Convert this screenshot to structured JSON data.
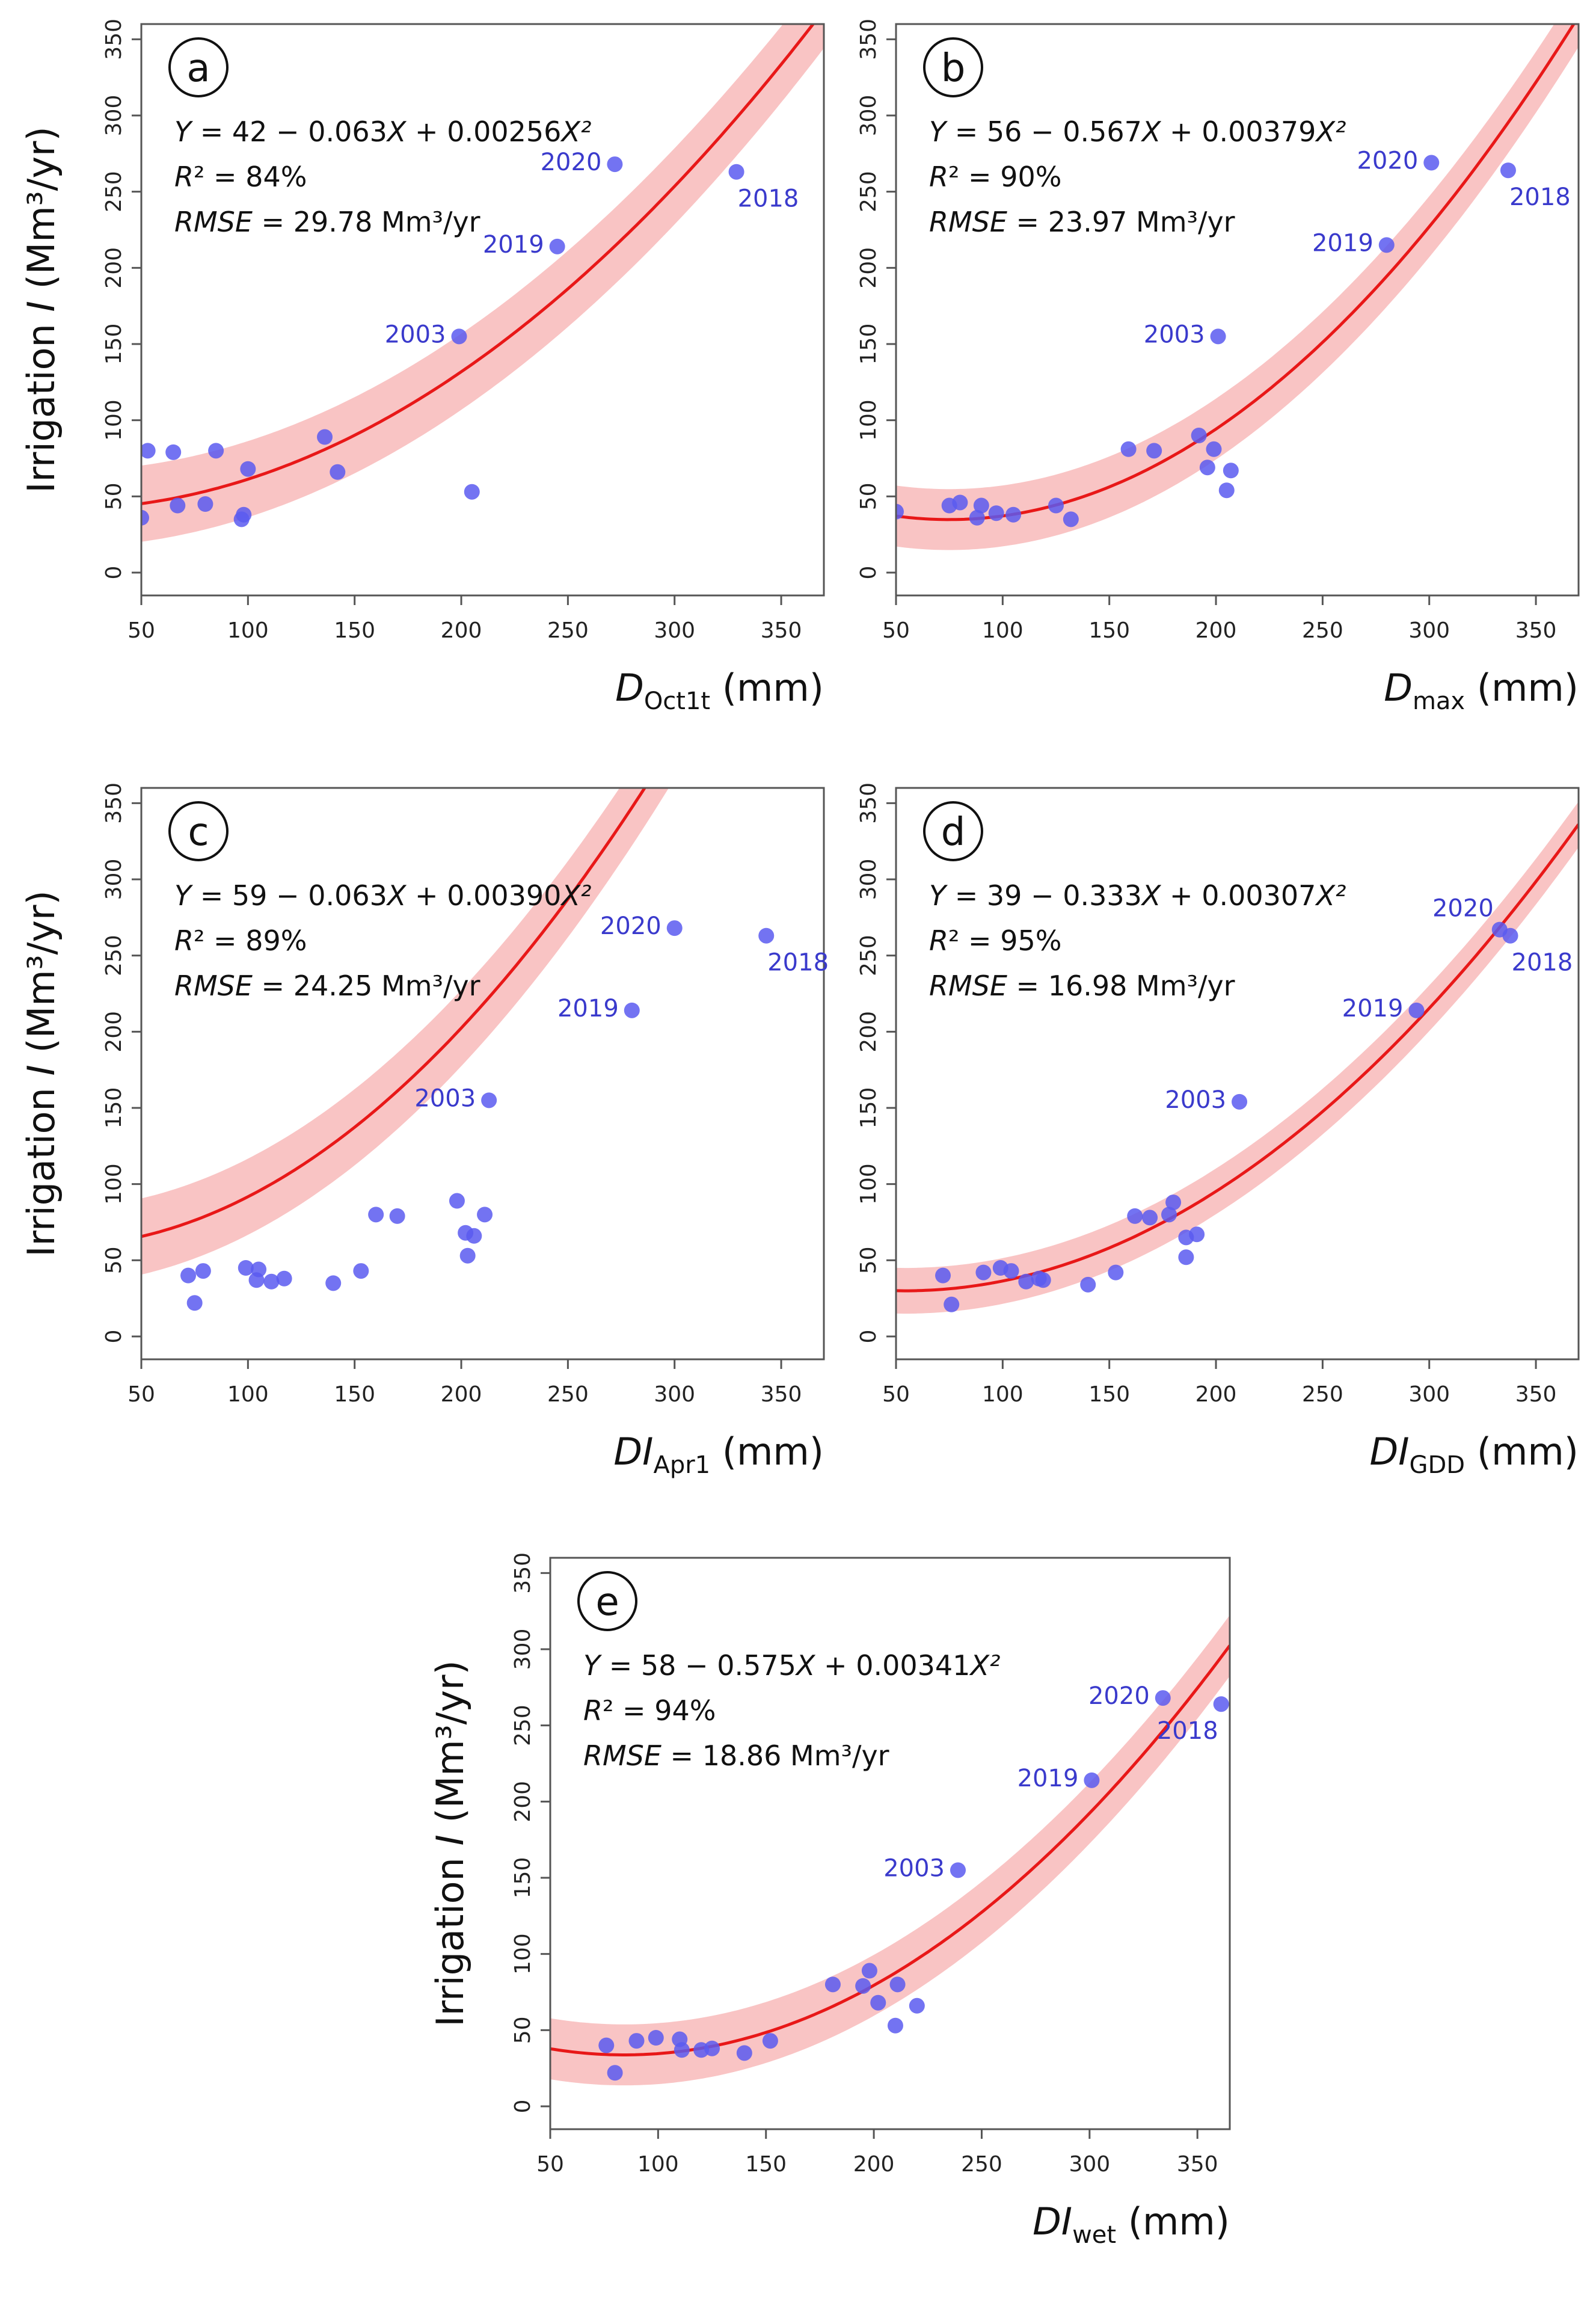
{
  "chart_data": [
    {
      "panel": "a",
      "type": "scatter",
      "equation": {
        "Y": "Y",
        "rhs": " = 42 − 0.063",
        "X1": "X",
        "mid": " + 0.00256",
        "X2": "X²"
      },
      "r2": {
        "sym": "R",
        "text": "² = 84%"
      },
      "rmse": {
        "sym": "RMSE",
        "text": " = 29.78 Mm³/yr"
      },
      "ylabel": {
        "pre": "Irrigation ",
        "sym": "I",
        "post": " (Mm³/yr)"
      },
      "xlabel": {
        "sym": "D",
        "sub": "Oct1t",
        "post": " (mm)"
      },
      "xlim": [
        50,
        370
      ],
      "ylim": [
        -15,
        360
      ],
      "xticks": [
        "50",
        "100",
        "150",
        "200",
        "250",
        "300",
        "350"
      ],
      "yticks": [
        "0",
        "50",
        "100",
        "150",
        "200",
        "250",
        "300",
        "350"
      ],
      "coef": [
        42,
        -0.063,
        0.00256
      ],
      "band": 25,
      "points": [
        [
          50,
          36
        ],
        [
          53,
          80
        ],
        [
          65,
          79
        ],
        [
          67,
          44
        ],
        [
          80,
          45
        ],
        [
          85,
          80
        ],
        [
          97,
          35
        ],
        [
          98,
          38
        ],
        [
          100,
          68
        ],
        [
          136,
          89
        ],
        [
          142,
          66
        ],
        [
          199,
          155
        ],
        [
          205,
          53
        ],
        [
          245,
          214
        ],
        [
          272,
          268
        ],
        [
          329,
          263
        ]
      ],
      "labels": [
        {
          "text": "2003",
          "x": 199,
          "y": 155,
          "side": "left"
        },
        {
          "text": "2019",
          "x": 245,
          "y": 214,
          "side": "left"
        },
        {
          "text": "2020",
          "x": 272,
          "y": 268,
          "side": "left"
        },
        {
          "text": "2018",
          "x": 329,
          "y": 263,
          "side": "below-right"
        }
      ]
    },
    {
      "panel": "b",
      "type": "scatter",
      "equation": {
        "Y": "Y",
        "rhs": " = 56 − 0.567",
        "X1": "X",
        "mid": " + 0.00379",
        "X2": "X²"
      },
      "r2": {
        "sym": "R",
        "text": "² = 90%"
      },
      "rmse": {
        "sym": "RMSE",
        "text": " = 23.97 Mm³/yr"
      },
      "ylabel": null,
      "xlabel": {
        "sym": "D",
        "sub": "max",
        "post": " (mm)"
      },
      "xlim": [
        50,
        370
      ],
      "ylim": [
        -15,
        360
      ],
      "xticks": [
        "50",
        "100",
        "150",
        "200",
        "250",
        "300",
        "350"
      ],
      "yticks": [
        "0",
        "50",
        "100",
        "150",
        "200",
        "250",
        "300",
        "350"
      ],
      "coef": [
        56,
        -0.567,
        0.00379
      ],
      "band": 20,
      "points": [
        [
          50,
          40
        ],
        [
          75,
          44
        ],
        [
          80,
          46
        ],
        [
          88,
          36
        ],
        [
          90,
          44
        ],
        [
          97,
          39
        ],
        [
          105,
          38
        ],
        [
          125,
          44
        ],
        [
          132,
          35
        ],
        [
          159,
          81
        ],
        [
          171,
          80
        ],
        [
          192,
          90
        ],
        [
          196,
          69
        ],
        [
          199,
          81
        ],
        [
          201,
          155
        ],
        [
          205,
          54
        ],
        [
          207,
          67
        ],
        [
          280,
          215
        ],
        [
          301,
          269
        ],
        [
          337,
          264
        ]
      ],
      "labels": [
        {
          "text": "2003",
          "x": 201,
          "y": 155,
          "side": "left"
        },
        {
          "text": "2019",
          "x": 280,
          "y": 215,
          "side": "left"
        },
        {
          "text": "2020",
          "x": 301,
          "y": 269,
          "side": "left"
        },
        {
          "text": "2018",
          "x": 337,
          "y": 264,
          "side": "below-right"
        }
      ]
    },
    {
      "panel": "c",
      "type": "scatter",
      "equation": {
        "Y": "Y",
        "rhs": " =  59 − 0.063",
        "X1": "X",
        "mid": " + 0.00390",
        "X2": "X²"
      },
      "r2": {
        "sym": "R",
        "text": "² = 89%"
      },
      "rmse": {
        "sym": "RMSE",
        "text": " = 24.25 Mm³/yr"
      },
      "ylabel": {
        "pre": "Irrigation ",
        "sym": "I",
        "post": " (Mm³/yr)"
      },
      "xlabel": {
        "sym": "DI",
        "sub": "Apr1",
        "post": " (mm)"
      },
      "xlim": [
        50,
        370
      ],
      "ylim": [
        -15,
        360
      ],
      "xticks": [
        "50",
        "100",
        "150",
        "200",
        "250",
        "300",
        "350"
      ],
      "yticks": [
        "0",
        "50",
        "100",
        "150",
        "200",
        "250",
        "300",
        "350"
      ],
      "coef": [
        59,
        -0.063,
        0.0039
      ],
      "band": 25,
      "points": [
        [
          72,
          40
        ],
        [
          75,
          22
        ],
        [
          79,
          43
        ],
        [
          99,
          45
        ],
        [
          104,
          37
        ],
        [
          105,
          44
        ],
        [
          111,
          36
        ],
        [
          117,
          38
        ],
        [
          140,
          35
        ],
        [
          153,
          43
        ],
        [
          160,
          80
        ],
        [
          170,
          79
        ],
        [
          198,
          89
        ],
        [
          202,
          68
        ],
        [
          203,
          53
        ],
        [
          206,
          66
        ],
        [
          211,
          80
        ],
        [
          213,
          155
        ],
        [
          280,
          214
        ],
        [
          300,
          268
        ],
        [
          343,
          263
        ]
      ],
      "labels": [
        {
          "text": "2003",
          "x": 213,
          "y": 155,
          "side": "left"
        },
        {
          "text": "2019",
          "x": 280,
          "y": 214,
          "side": "left"
        },
        {
          "text": "2020",
          "x": 300,
          "y": 268,
          "side": "left"
        },
        {
          "text": "2018",
          "x": 343,
          "y": 263,
          "side": "below-right"
        }
      ]
    },
    {
      "panel": "d",
      "type": "scatter",
      "equation": {
        "Y": "Y",
        "rhs": " =  39 − 0.333",
        "X1": "X",
        "mid": " + 0.00307",
        "X2": "X²"
      },
      "r2": {
        "sym": "R",
        "text": "² = 95%"
      },
      "rmse": {
        "sym": "RMSE",
        "text": " = 16.98 Mm³/yr"
      },
      "ylabel": null,
      "xlabel": {
        "sym": "DI",
        "sub": "GDD",
        "post": " (mm)"
      },
      "xlim": [
        50,
        370
      ],
      "ylim": [
        -15,
        360
      ],
      "xticks": [
        "50",
        "100",
        "150",
        "200",
        "250",
        "300",
        "350"
      ],
      "yticks": [
        "0",
        "50",
        "100",
        "150",
        "200",
        "250",
        "300",
        "350"
      ],
      "coef": [
        39,
        -0.333,
        0.00307
      ],
      "band": 15,
      "points": [
        [
          72,
          40
        ],
        [
          76,
          21
        ],
        [
          91,
          42
        ],
        [
          99,
          45
        ],
        [
          104,
          43
        ],
        [
          111,
          36
        ],
        [
          117,
          38
        ],
        [
          119,
          37
        ],
        [
          140,
          34
        ],
        [
          153,
          42
        ],
        [
          162,
          79
        ],
        [
          169,
          78
        ],
        [
          178,
          80
        ],
        [
          180,
          88
        ],
        [
          186,
          52
        ],
        [
          186,
          65
        ],
        [
          191,
          67
        ],
        [
          211,
          154
        ],
        [
          294,
          214
        ],
        [
          333,
          267
        ],
        [
          338,
          263
        ]
      ],
      "labels": [
        {
          "text": "2003",
          "x": 211,
          "y": 154,
          "side": "left"
        },
        {
          "text": "2019",
          "x": 294,
          "y": 214,
          "side": "left"
        },
        {
          "text": "2020",
          "x": 333,
          "y": 267,
          "side": "above-left"
        },
        {
          "text": "2018",
          "x": 338,
          "y": 263,
          "side": "below-right"
        }
      ]
    },
    {
      "panel": "e",
      "type": "scatter",
      "equation": {
        "Y": "Y",
        "rhs": " =  58 − 0.575",
        "X1": "X",
        "mid": " + 0.00341",
        "X2": "X²"
      },
      "r2": {
        "sym": "R",
        "text": "² = 94%"
      },
      "rmse": {
        "sym": "RMSE",
        "text": " = 18.86 Mm³/yr"
      },
      "ylabel": {
        "pre": "Irrigation ",
        "sym": "I",
        "post": " (Mm³/yr)"
      },
      "xlabel": {
        "sym": "DI",
        "sub": "wet",
        "post": " (mm)"
      },
      "xlim": [
        50,
        365
      ],
      "ylim": [
        -15,
        360
      ],
      "xticks": [
        "50",
        "100",
        "150",
        "200",
        "250",
        "300",
        "350"
      ],
      "yticks": [
        "0",
        "50",
        "100",
        "150",
        "200",
        "250",
        "300",
        "350"
      ],
      "coef": [
        58,
        -0.575,
        0.00341
      ],
      "band": 20,
      "points": [
        [
          76,
          40
        ],
        [
          80,
          22
        ],
        [
          90,
          43
        ],
        [
          99,
          45
        ],
        [
          110,
          44
        ],
        [
          111,
          37
        ],
        [
          120,
          37
        ],
        [
          125,
          38
        ],
        [
          140,
          35
        ],
        [
          152,
          43
        ],
        [
          181,
          80
        ],
        [
          195,
          79
        ],
        [
          198,
          89
        ],
        [
          202,
          68
        ],
        [
          210,
          53
        ],
        [
          211,
          80
        ],
        [
          220,
          66
        ],
        [
          239,
          155
        ],
        [
          301,
          214
        ],
        [
          334,
          268
        ],
        [
          361,
          264
        ]
      ],
      "labels": [
        {
          "text": "2003",
          "x": 239,
          "y": 155,
          "side": "left"
        },
        {
          "text": "2019",
          "x": 301,
          "y": 214,
          "side": "left"
        },
        {
          "text": "2020",
          "x": 334,
          "y": 268,
          "side": "left"
        },
        {
          "text": "2018",
          "x": 361,
          "y": 264,
          "side": "below-left"
        }
      ]
    }
  ]
}
